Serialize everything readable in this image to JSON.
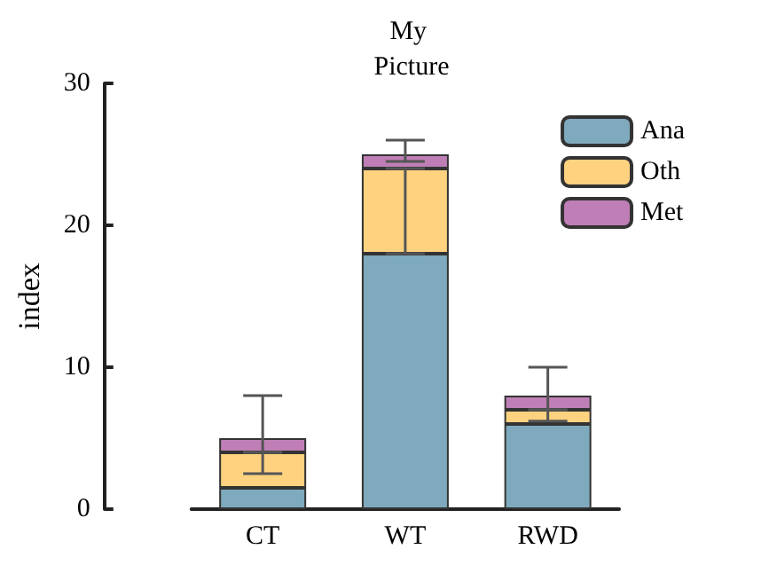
{
  "chart_data": {
    "type": "bar",
    "stacked": true,
    "title": "My Picture",
    "ylabel": "index",
    "categories": [
      "CT",
      "WT",
      "RWD"
    ],
    "series": [
      {
        "name": "Ana",
        "color": "#7fa9bc",
        "values": [
          1.5,
          18,
          6
        ]
      },
      {
        "name": "Oth",
        "color": "#ffd27f",
        "values": [
          2.5,
          6,
          1
        ],
        "errors": [
          [
            2.5,
            4
          ],
          [
            18,
            24
          ],
          [
            6.2,
            7
          ]
        ]
      },
      {
        "name": "Met",
        "color": "#bf7fb6",
        "values": [
          1,
          1,
          1
        ],
        "errors": [
          [
            4,
            8
          ],
          [
            24.5,
            26
          ],
          [
            7,
            10
          ]
        ]
      }
    ],
    "ylim": [
      0,
      30
    ],
    "yticks": [
      0,
      10,
      20,
      30
    ],
    "legend": "top right",
    "grid": false
  }
}
